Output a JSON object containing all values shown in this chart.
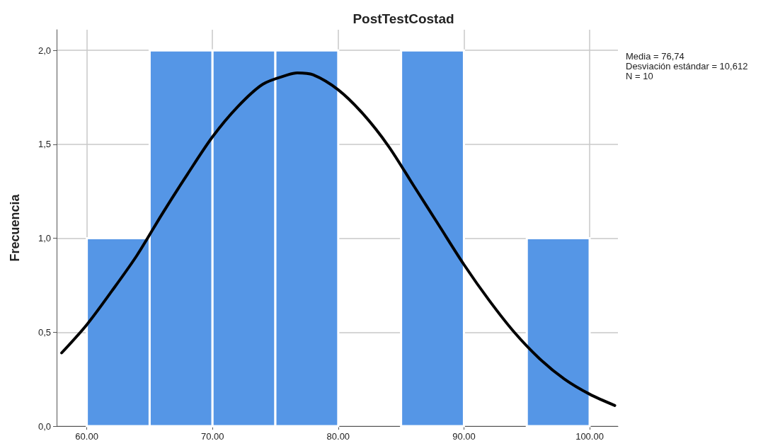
{
  "chart_data": {
    "type": "histogram",
    "title": "PostTestCostad",
    "ylabel": "Frecuencia",
    "annotations": [
      "Media = 76,74",
      "Desviación estándar = 10,612",
      "N = 10"
    ],
    "series": [
      {
        "color": "#5596e6",
        "bins": [
          60,
          65,
          70,
          75,
          80,
          85,
          90,
          95,
          100
        ],
        "values": [
          1,
          2,
          2,
          2,
          0,
          2,
          0,
          1
        ]
      },
      {
        "type": "line",
        "color": "#000000",
        "x": [
          58,
          60,
          62,
          64,
          66,
          68,
          70,
          72,
          74,
          76,
          76.74,
          78,
          80,
          82,
          84,
          86,
          88,
          90,
          92,
          94,
          96,
          98,
          100,
          102
        ],
        "values": [
          0.39,
          0.54,
          0.72,
          0.91,
          1.13,
          1.34,
          1.54,
          1.7,
          1.82,
          1.87,
          1.88,
          1.87,
          1.79,
          1.66,
          1.49,
          1.28,
          1.07,
          0.86,
          0.67,
          0.5,
          0.36,
          0.25,
          0.17,
          0.11
        ]
      }
    ],
    "xlim": [
      57.6,
      102.25
    ],
    "ylim": [
      0,
      2.11
    ],
    "xticks": [
      {
        "value": 60,
        "label": "60.00"
      },
      {
        "value": 70,
        "label": "70.00"
      },
      {
        "value": 80,
        "label": "80.00"
      },
      {
        "value": 90,
        "label": "90.00"
      },
      {
        "value": 100,
        "label": "100.00"
      }
    ],
    "yticks": [
      {
        "value": 0,
        "label": "0,0"
      },
      {
        "value": 0.5,
        "label": "0,5"
      },
      {
        "value": 1,
        "label": "1,0"
      },
      {
        "value": 1.5,
        "label": "1,5"
      },
      {
        "value": 2,
        "label": "2,0"
      }
    ],
    "grid": true,
    "marker": "none",
    "line_style": "solid"
  }
}
